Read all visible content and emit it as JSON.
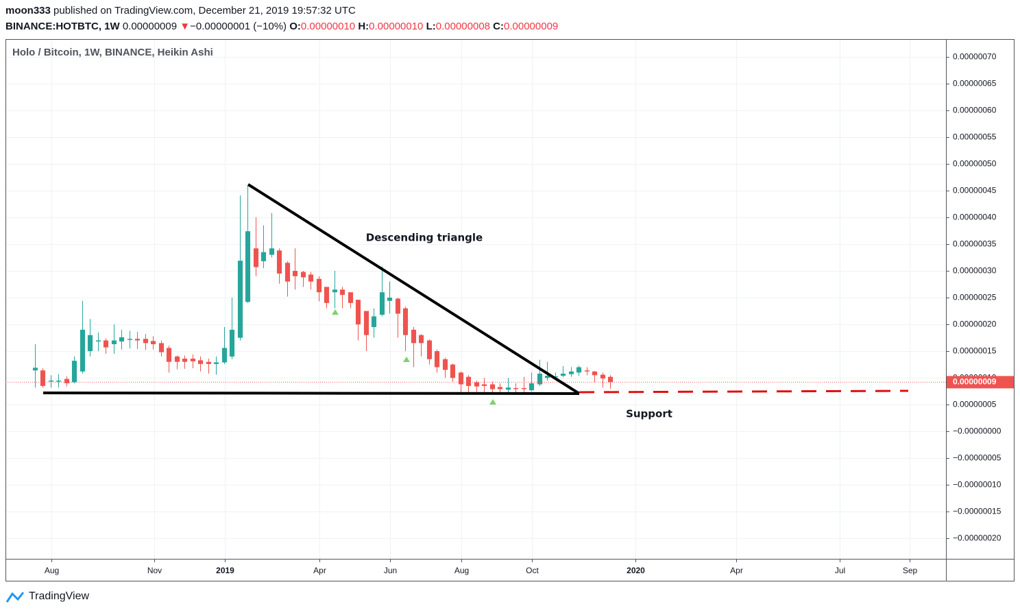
{
  "header": {
    "author": "moon333",
    "published": "published on TradingView.com, December 21, 2019 19:57:32 UTC",
    "symbol": "BINANCE:HOTBTC, 1W",
    "price": "0.00000009",
    "change": "−0.00000001 (−10%)",
    "o_label": "O:",
    "o": "0.00000010",
    "h_label": "H:",
    "h": "0.00000010",
    "l_label": "L:",
    "l": "0.00000008",
    "c_label": "C:",
    "c": "0.00000009"
  },
  "footer": {
    "brand": "TradingView"
  },
  "chart_data": {
    "type": "candlestick",
    "title": "Holo / Bitcoin, 1W, BINANCE, Heikin Ashi",
    "annotations": [
      "Descending triangle",
      "Support"
    ],
    "price_label": "0.00000009",
    "up_color": "#26a69a",
    "down_color": "#ef5350",
    "grid": true,
    "open": [
      1.14e-07,
      1.14e-07,
      9.4e-08,
      9.4e-08,
      9.8e-08,
      9.2e-08,
      1.12e-07,
      1.5e-07,
      1.68e-07,
      1.7e-07,
      1.63e-07,
      1.68e-07,
      1.72e-07,
      1.73e-07,
      1.73e-07,
      1.69e-07,
      1.65e-07,
      1.56e-07,
      1.4e-07,
      1.36e-07,
      1.36e-07,
      1.33e-07,
      1.3e-07,
      1.26e-07,
      1.29e-07,
      1.4e-07,
      1.75e-07,
      2.42e-07,
      3.42e-07,
      3.18e-07,
      3.3e-07,
      3.38e-07,
      3.15e-07,
      3e-07,
      2.98e-07,
      2.93e-07,
      2.85e-07,
      2.7e-07,
      2.6e-07,
      2.65e-07,
      2.6e-07,
      2.46e-07,
      2.25e-07,
      1.95e-07,
      2.18e-07,
      2.44e-07,
      2.48e-07,
      2.3e-07,
      1.9e-07,
      1.8e-07,
      1.7e-07,
      1.5e-07,
      1.35e-07,
      1.25e-07,
      1.1e-07,
      1.02e-07,
      9.2e-08,
      8.8e-08,
      8.8e-08,
      8.3e-08,
      7.8e-08,
      8.1e-08,
      8.1e-08,
      7.7e-08,
      8.8e-08,
      1e-07,
      1.02e-07,
      1.04e-07,
      1.07e-07,
      1.1e-07,
      1.14e-07,
      1.12e-07,
      1.06e-07,
      1.02e-07
    ],
    "high": [
      1.63e-07,
      1.18e-07,
      1.05e-07,
      1.07e-07,
      1.03e-07,
      1.4e-07,
      2.44e-07,
      2.1e-07,
      1.85e-07,
      1.74e-07,
      2e-07,
      1.9e-07,
      1.88e-07,
      1.86e-07,
      1.82e-07,
      1.78e-07,
      1.7e-07,
      1.6e-07,
      1.42e-07,
      1.42e-07,
      1.44e-07,
      1.4e-07,
      1.36e-07,
      1.4e-07,
      1.95e-07,
      2.5e-07,
      4.41e-07,
      4.6e-07,
      4e-07,
      3.85e-07,
      4.08e-07,
      3.42e-07,
      3.18e-07,
      3.42e-07,
      3e-07,
      2.98e-07,
      2.9e-07,
      2.7e-07,
      3e-07,
      2.7e-07,
      2.6e-07,
      2.46e-07,
      2.25e-07,
      2.3e-07,
      3.08e-07,
      2.8e-07,
      2.5e-07,
      2.33e-07,
      1.95e-07,
      1.82e-07,
      1.72e-07,
      1.53e-07,
      1.38e-07,
      1.27e-07,
      1.12e-07,
      1.05e-07,
      9.5e-08,
      1e-07,
      9.3e-08,
      9e-08,
      1e-07,
      9e-08,
      1.02e-07,
      1.1e-07,
      1.34e-07,
      1.3e-07,
      1.1e-07,
      1.22e-07,
      1.2e-07,
      1.23e-07,
      1.2e-07,
      1.13e-07,
      1.1e-07,
      1.05e-07
    ],
    "low": [
      8.2e-08,
      8.2e-08,
      8.2e-08,
      8.2e-08,
      8.4e-08,
      9e-08,
      1.08e-07,
      1.4e-07,
      1.5e-07,
      1.45e-07,
      1.45e-07,
      1.53e-07,
      1.55e-07,
      1.54e-07,
      1.52e-07,
      1.53e-07,
      1.4e-07,
      1.1e-07,
      1.16e-07,
      1.17e-07,
      1.18e-07,
      1.12e-07,
      1.08e-07,
      1.06e-07,
      1.26e-07,
      1.35e-07,
      1.7e-07,
      2.4e-07,
      2.9e-07,
      3.05e-07,
      3.25e-07,
      2.76e-07,
      2.52e-07,
      2.65e-07,
      2.7e-07,
      2.65e-07,
      2.43e-07,
      2.3e-07,
      2.3e-07,
      2.3e-07,
      2.3e-07,
      1.7e-07,
      1.5e-07,
      1.75e-07,
      2.15e-07,
      2.2e-07,
      1.75e-07,
      1.5e-07,
      1.2e-07,
      1.4e-07,
      1.25e-07,
      1.1e-07,
      1e-07,
      9.3e-08,
      7.2e-08,
      7.3e-08,
      7.4e-08,
      7.3e-08,
      7.2e-08,
      7.3e-08,
      7.2e-08,
      7.3e-08,
      7.3e-08,
      7.5e-08,
      8.5e-08,
      9.5e-08,
      9.8e-08,
      1.01e-07,
      1.02e-07,
      1.04e-07,
      1.05e-07,
      9.2e-08,
      8.2e-08,
      8e-08
    ],
    "close": [
      1.19e-07,
      8.5e-08,
      9.5e-08,
      9.5e-08,
      9e-08,
      1.32e-07,
      1.9e-07,
      1.8e-07,
      1.7e-07,
      1.57e-07,
      1.7e-07,
      1.76e-07,
      1.73e-07,
      1.7e-07,
      1.65e-07,
      1.63e-07,
      1.48e-07,
      1.3e-07,
      1.3e-07,
      1.3e-07,
      1.31e-07,
      1.26e-07,
      1.26e-07,
      1.29e-07,
      1.56e-07,
      1.9e-07,
      3.19e-07,
      3.74e-07,
      3.07e-07,
      3.35e-07,
      3.42e-07,
      2.95e-07,
      2.8e-07,
      2.9e-07,
      2.88e-07,
      2.8e-07,
      2.6e-07,
      2.4e-07,
      2.65e-07,
      2.55e-07,
      2.4e-07,
      2e-07,
      1.8e-07,
      2.15e-07,
      2.6e-07,
      2.5e-07,
      2.2e-07,
      1.8e-07,
      1.65e-07,
      1.65e-07,
      1.35e-07,
      1.2e-07,
      1.15e-07,
      1e-07,
      8.8e-08,
      8.5e-08,
      8.4e-08,
      8.5e-08,
      7.9e-08,
      7.9e-08,
      8.2e-08,
      8e-08,
      8e-08,
      9e-08,
      1.08e-07,
      1.04e-07,
      1.03e-07,
      1.08e-07,
      1.12e-07,
      1.2e-07,
      1.13e-07,
      1.05e-07,
      9.9e-08,
      9.2e-08
    ],
    "xlim": [
      -3.74,
      115.6
    ],
    "xticks": [
      {
        "value": 2.09,
        "label": "Aug"
      },
      {
        "value": 15.1,
        "label": "Nov"
      },
      {
        "value": 24.1,
        "label": "2019"
      },
      {
        "value": 36.1,
        "label": "Apr"
      },
      {
        "value": 45.1,
        "label": "Jun"
      },
      {
        "value": 54.1,
        "label": "Aug"
      },
      {
        "value": 63.1,
        "label": "Oct"
      },
      {
        "value": 76.2,
        "label": "2020"
      },
      {
        "value": 89.0,
        "label": "Apr"
      },
      {
        "value": 102.1,
        "label": "Jul"
      },
      {
        "value": 111.0,
        "label": "Sep"
      }
    ],
    "ylim": [
      -2.38e-07,
      7.33e-07
    ],
    "yticks": [
      {
        "value": 7e-07,
        "label": "0.00000070"
      },
      {
        "value": 6.5e-07,
        "label": "0.00000065"
      },
      {
        "value": 6e-07,
        "label": "0.00000060"
      },
      {
        "value": 5.5e-07,
        "label": "0.00000055"
      },
      {
        "value": 5e-07,
        "label": "0.00000050"
      },
      {
        "value": 4.5e-07,
        "label": "0.00000045"
      },
      {
        "value": 4e-07,
        "label": "0.00000040"
      },
      {
        "value": 3.5e-07,
        "label": "0.00000035"
      },
      {
        "value": 3e-07,
        "label": "0.00000030"
      },
      {
        "value": 2.5e-07,
        "label": "0.00000025"
      },
      {
        "value": 2e-07,
        "label": "0.00000020"
      },
      {
        "value": 1.5e-07,
        "label": "0.00000015"
      },
      {
        "value": 1e-07,
        "label": "0.00000010"
      },
      {
        "value": 5e-08,
        "label": "0.00000005"
      },
      {
        "value": 0,
        "label": "−0.00000000"
      },
      {
        "value": -5e-08,
        "label": "−0.00000005"
      },
      {
        "value": -1e-07,
        "label": "−0.00000010"
      },
      {
        "value": -1.5e-07,
        "label": "−0.00000015"
      },
      {
        "value": -2e-07,
        "label": "−0.00000020"
      }
    ]
  }
}
